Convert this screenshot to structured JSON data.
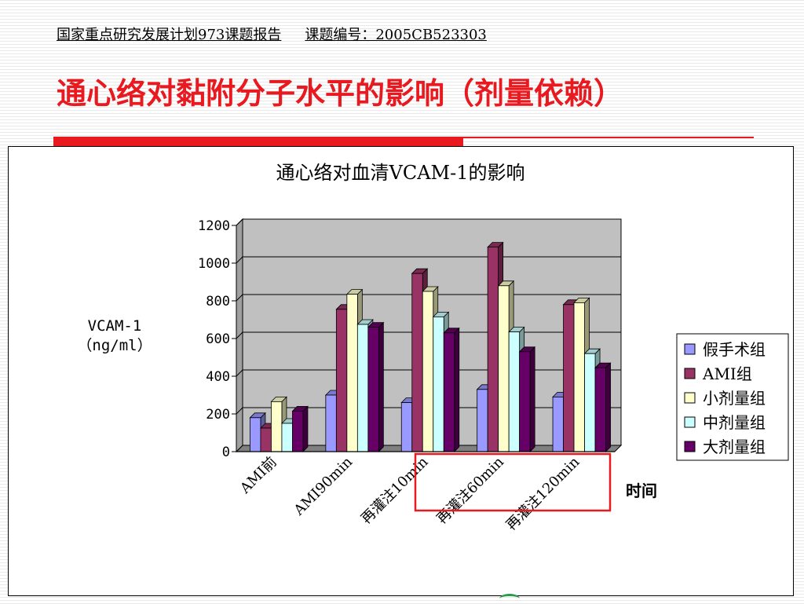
{
  "header": {
    "report_text": "国家重点研究发展计划973课题报告",
    "code_text": "课题编号：2005CB523303"
  },
  "page_title": "通心络对黏附分子水平的影响（剂量依赖）",
  "colors": {
    "title_red": "#e8191f",
    "plot_bg": "#c0c0c0",
    "highlight_box": "#e8191f"
  },
  "chart_data": {
    "type": "bar",
    "title": "通心络对血清VCAM-1的影响",
    "ylabel_line1": "VCAM-1",
    "ylabel_line2": "（ng/ml）",
    "xlabel": "时间",
    "ylim": [
      0,
      1200
    ],
    "yticks": [
      0,
      200,
      400,
      600,
      800,
      1000,
      1200
    ],
    "categories": [
      "AMI前",
      "AMI90min",
      "再灌注10min",
      "再灌注60min",
      "再灌注120min"
    ],
    "series": [
      {
        "name": "假手术组",
        "color": "#9999ff",
        "values": [
          180,
          300,
          260,
          330,
          290
        ]
      },
      {
        "name": "AMI组",
        "color": "#993366",
        "values": [
          125,
          755,
          945,
          1085,
          780
        ]
      },
      {
        "name": "小剂量组",
        "color": "#ffffcc",
        "values": [
          265,
          835,
          850,
          880,
          790
        ]
      },
      {
        "name": "中剂量组",
        "color": "#ccffff",
        "values": [
          150,
          675,
          715,
          635,
          520
        ]
      },
      {
        "name": "大剂量组",
        "color": "#660066",
        "values": [
          215,
          660,
          630,
          530,
          445
        ]
      }
    ],
    "grid": true,
    "legend_position": "right",
    "highlighted_categories": [
      "再灌注60min",
      "再灌注120min"
    ]
  }
}
